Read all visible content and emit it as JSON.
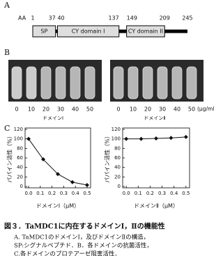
{
  "panel_a": {
    "label": "A",
    "aa_label": "AA",
    "length_max": 245,
    "positions": [
      1,
      37,
      40,
      137,
      149,
      209,
      245
    ],
    "domains": [
      {
        "label": "SP",
        "start": 1,
        "end": 37
      },
      {
        "label": "CY domain I",
        "start": 40,
        "end": 137
      },
      {
        "label": "CY domain II",
        "start": 149,
        "end": 209
      }
    ]
  },
  "panel_b": {
    "label": "B",
    "concentrations": [
      0,
      10,
      20,
      30,
      40,
      50
    ],
    "unit": "(μg/ml)",
    "groups": [
      "ドメインⅠ",
      "ドメインⅡ"
    ]
  },
  "panel_c_label": "C",
  "chart_data": [
    {
      "type": "line",
      "x_label": "ドメインⅠ（μM）",
      "y_label": "パパイン活性（%）",
      "x": [
        0,
        0.125,
        0.25,
        0.375,
        0.5
      ],
      "series": [
        {
          "color": "#111111",
          "values": [
            100,
            57,
            26,
            9,
            3
          ]
        }
      ],
      "xlim": [
        -0.03,
        0.53
      ],
      "ylim": [
        0,
        120
      ],
      "xticks": [
        {
          "value": 0,
          "label": "0.0"
        },
        0.1,
        0.2,
        0.3,
        0.4,
        0.5
      ],
      "yticks": [
        0,
        20,
        40,
        60,
        80,
        100,
        120
      ]
    },
    {
      "type": "line",
      "x_label": "ドメインⅡ（μM）",
      "y_label": "パパイン活性（%）",
      "x": [
        0,
        0.125,
        0.25,
        0.375,
        0.5
      ],
      "series": [
        {
          "color": "#111111",
          "values": [
            100,
            100,
            101,
            102,
            104
          ]
        }
      ],
      "xlim": [
        -0.03,
        0.53
      ],
      "ylim": [
        0,
        120
      ],
      "xticks": [
        {
          "value": 0,
          "label": "0.0"
        },
        0.1,
        0.2,
        0.3,
        0.4,
        0.5
      ],
      "yticks": [
        0,
        20,
        40,
        60,
        80,
        100,
        120
      ]
    }
  ],
  "caption": {
    "title": "図３．TaMDC1に内在するドメインⅠ，Ⅱの機能性",
    "lines": [
      "A. TaMDC1のドメインⅠ，及びドメインⅡの構造，",
      "SP:シグナルペプチド．B．各ドメインの抗菌活性，",
      "C.各ドメインのプロテアーゼ阻害活性．"
    ]
  }
}
